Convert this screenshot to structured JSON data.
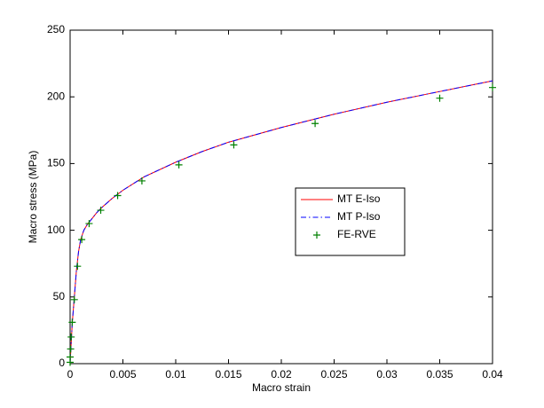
{
  "chart_data": {
    "type": "line",
    "xlabel": "Macro strain",
    "ylabel": "Macro stress (MPa)",
    "xlim": [
      0,
      0.04
    ],
    "ylim": [
      0,
      250
    ],
    "xticks": [
      0,
      0.005,
      0.01,
      0.015,
      0.02,
      0.025,
      0.03,
      0.035,
      0.04
    ],
    "yticks": [
      0,
      50,
      100,
      150,
      200,
      250
    ],
    "legend": "east",
    "series": [
      {
        "name": "MT E-Iso",
        "color": "#ff0000",
        "style": "solid",
        "x": [
          0,
          0.0001,
          0.0002,
          0.0004,
          0.0006,
          0.0008,
          0.001,
          0.0013,
          0.0016,
          0.002,
          0.0025,
          0.003,
          0.004,
          0.005,
          0.007,
          0.01,
          0.0125,
          0.015,
          0.02,
          0.025,
          0.03,
          0.035,
          0.04
        ],
        "values": [
          0,
          15,
          30,
          50,
          70,
          84,
          93,
          100,
          104,
          108,
          113,
          117,
          124,
          130,
          140,
          151,
          159,
          166,
          177,
          187,
          196,
          204,
          212
        ]
      },
      {
        "name": "MT P-Iso",
        "color": "#0000ff",
        "style": "dashdot",
        "x": [
          0,
          0.0001,
          0.0002,
          0.0004,
          0.0006,
          0.0008,
          0.001,
          0.0013,
          0.0016,
          0.002,
          0.0025,
          0.003,
          0.004,
          0.005,
          0.007,
          0.01,
          0.0125,
          0.015,
          0.02,
          0.025,
          0.03,
          0.035,
          0.04
        ],
        "values": [
          0,
          15,
          30,
          50,
          70,
          84,
          93,
          100,
          104,
          108,
          113,
          117,
          124,
          130,
          140,
          151,
          159,
          166,
          177,
          187,
          196,
          204,
          212
        ]
      },
      {
        "name": "FE-RVE",
        "color": "#008000",
        "style": "marker",
        "x": [
          0,
          0,
          5e-05,
          0.0001,
          0.0002,
          0.0004,
          0.0007,
          0.0011,
          0.0018,
          0.0029,
          0.0045,
          0.0068,
          0.0103,
          0.0155,
          0.0232,
          0.035,
          0.04
        ],
        "values": [
          1,
          5,
          11,
          20,
          31,
          48,
          73,
          93,
          105,
          115,
          126,
          137,
          149,
          164,
          180,
          199,
          207
        ]
      }
    ]
  }
}
